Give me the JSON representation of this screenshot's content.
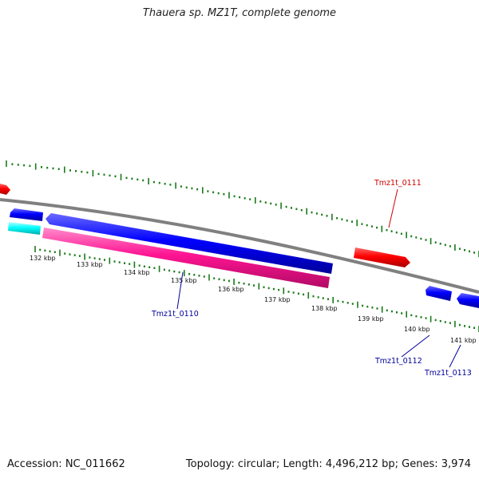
{
  "title": "Thauera sp. MZ1T, complete genome",
  "footer": {
    "accession": "Accession: NC_011662",
    "summary": "Topology: circular; Length: 4,496,212 bp; Genes: 3,974"
  },
  "colors": {
    "backbone": "#808080",
    "tick": "#1a7a1a",
    "forward_gene": "#ff0000",
    "reverse_gene": "#0000ff",
    "cds": "#ff1493",
    "rna": "#00ffff",
    "label_forward": "#cc0000",
    "label_reverse": "#000099"
  },
  "ticks": [
    {
      "label": "132 kbp"
    },
    {
      "label": "133 kbp"
    },
    {
      "label": "134 kbp"
    },
    {
      "label": "135 kbp"
    },
    {
      "label": "136 kbp"
    },
    {
      "label": "137 kbp"
    },
    {
      "label": "138 kbp"
    },
    {
      "label": "139 kbp"
    },
    {
      "label": "140 kbp"
    },
    {
      "label": "141 kbp"
    }
  ],
  "gene_labels": [
    {
      "id": "Tmz1t_0110",
      "strand": "reverse"
    },
    {
      "id": "Tmz1t_0111",
      "strand": "forward"
    },
    {
      "id": "Tmz1t_0112",
      "strand": "reverse"
    },
    {
      "id": "Tmz1t_0113",
      "strand": "reverse"
    }
  ]
}
